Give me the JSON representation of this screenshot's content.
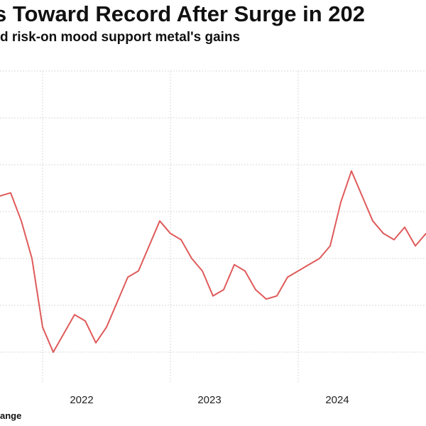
{
  "title": "s Toward Record After Surge in 202",
  "subtitle": "d risk-on mood support metal's gains",
  "source": "ange",
  "chart_data": {
    "type": "line",
    "title": "s Toward Record After Surge in 202",
    "subtitle": "d risk-on mood support metal's gains",
    "xlabel": "",
    "ylabel": "",
    "x_tick_labels": [
      "2022",
      "2023",
      "2024"
    ],
    "x_range": [
      "2021-09",
      "2025-01"
    ],
    "y_range": [
      0,
      100
    ],
    "grid": true,
    "legend": "none",
    "series": [
      {
        "color": "#e05a5a",
        "x": [
          "2021-09",
          "2021-10",
          "2021-11",
          "2021-12",
          "2022-01",
          "2022-02",
          "2022-03",
          "2022-04",
          "2022-05",
          "2022-06",
          "2022-07",
          "2022-08",
          "2022-09",
          "2022-10",
          "2022-11",
          "2022-12",
          "2023-01",
          "2023-02",
          "2023-03",
          "2023-04",
          "2023-05",
          "2023-06",
          "2023-07",
          "2023-08",
          "2023-09",
          "2023-10",
          "2023-11",
          "2023-12",
          "2024-01",
          "2024-02",
          "2024-03",
          "2024-04",
          "2024-05",
          "2024-06",
          "2024-07",
          "2024-08",
          "2024-09",
          "2024-10",
          "2024-11",
          "2024-12",
          "2025-01"
        ],
        "values": [
          60,
          61,
          52,
          40,
          18,
          10,
          16,
          22,
          20,
          13,
          18,
          26,
          34,
          36,
          44,
          52,
          48,
          46,
          40,
          36,
          28,
          30,
          38,
          36,
          30,
          27,
          28,
          34,
          36,
          38,
          40,
          44,
          58,
          68,
          60,
          52,
          48,
          46,
          50,
          44,
          48
        ]
      }
    ]
  }
}
